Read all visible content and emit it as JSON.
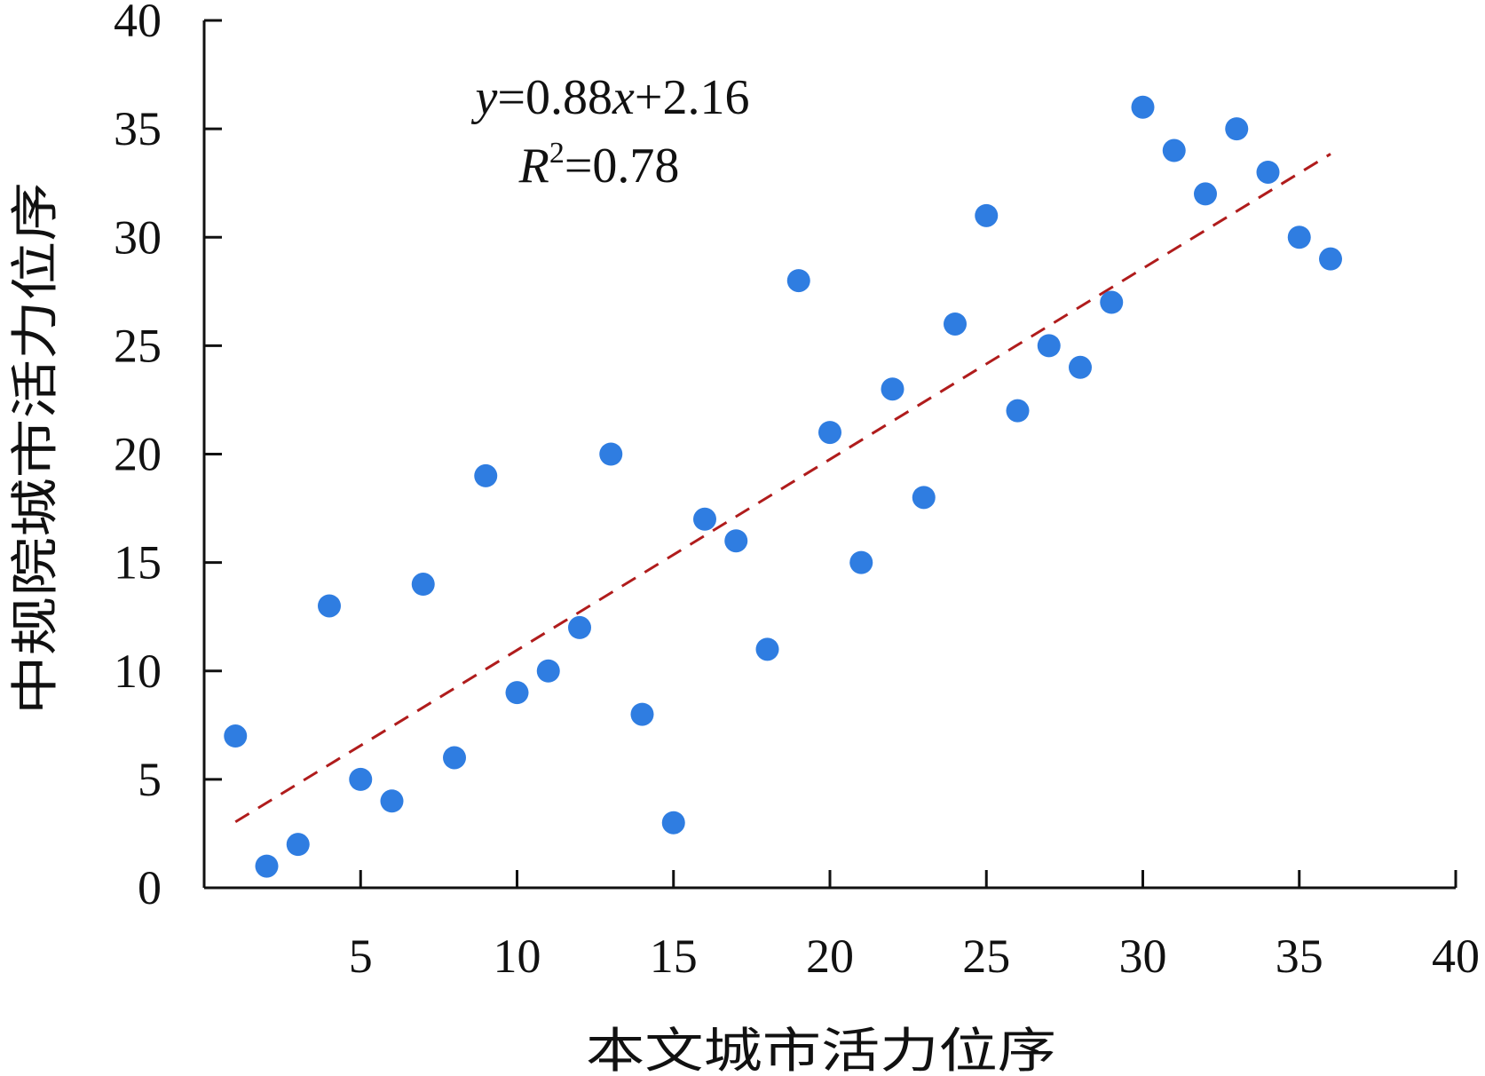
{
  "chart_data": {
    "type": "scatter",
    "xlabel": "本文城市活力位序",
    "ylabel": "中规院城市活力位序",
    "xlim": [
      0,
      40
    ],
    "ylim": [
      0,
      40
    ],
    "x_ticks": [
      5,
      10,
      15,
      20,
      25,
      30,
      35,
      40
    ],
    "y_ticks": [
      0,
      5,
      10,
      15,
      20,
      25,
      30,
      35,
      40
    ],
    "grid": false,
    "series": [
      {
        "marker_color": "#2f7de1",
        "points": [
          [
            1,
            7
          ],
          [
            2,
            1
          ],
          [
            3,
            2
          ],
          [
            4,
            13
          ],
          [
            5,
            5
          ],
          [
            6,
            4
          ],
          [
            7,
            14
          ],
          [
            8,
            6
          ],
          [
            9,
            19
          ],
          [
            10,
            9
          ],
          [
            11,
            10
          ],
          [
            12,
            12
          ],
          [
            13,
            20
          ],
          [
            14,
            8
          ],
          [
            15,
            3
          ],
          [
            16,
            17
          ],
          [
            17,
            16
          ],
          [
            18,
            11
          ],
          [
            19,
            28
          ],
          [
            20,
            21
          ],
          [
            21,
            15
          ],
          [
            22,
            23
          ],
          [
            23,
            18
          ],
          [
            24,
            26
          ],
          [
            25,
            31
          ],
          [
            26,
            22
          ],
          [
            27,
            25
          ],
          [
            28,
            24
          ],
          [
            29,
            27
          ],
          [
            30,
            36
          ],
          [
            31,
            34
          ],
          [
            32,
            32
          ],
          [
            33,
            35
          ],
          [
            34,
            33
          ],
          [
            35,
            30
          ],
          [
            36,
            29
          ]
        ]
      }
    ],
    "trendline": {
      "slope": 0.88,
      "intercept": 2.16,
      "x_range": [
        1,
        36
      ],
      "color": "#b01c1c",
      "style": "dashed"
    },
    "annotation": {
      "equation": {
        "y": "y",
        "eq": "=0.88",
        "x": "x",
        "rest": "+2.16"
      },
      "r2": {
        "R": "R",
        "sup": "2",
        "rest": "=0.78"
      }
    }
  }
}
